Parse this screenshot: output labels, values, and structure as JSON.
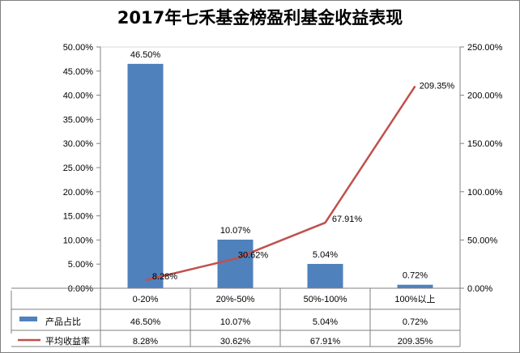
{
  "chart_data": {
    "type": "bar",
    "title": "2017年七禾基金榜盈利基金收益表现",
    "categories": [
      "0-20%",
      "20%-50%",
      "50%-100%",
      "100%以上"
    ],
    "series": [
      {
        "name": "产品占比",
        "type": "bar",
        "axis": "left",
        "color": "#4f81bd",
        "values": [
          46.5,
          10.07,
          5.04,
          0.72
        ],
        "labels": [
          "46.50%",
          "10.07%",
          "5.04%",
          "0.72%"
        ]
      },
      {
        "name": "平均收益率",
        "type": "line",
        "axis": "right",
        "color": "#c0504d",
        "values": [
          8.28,
          30.62,
          67.91,
          209.35
        ],
        "labels": [
          "8.28%",
          "30.62%",
          "67.91%",
          "209.35%"
        ]
      }
    ],
    "y_left": {
      "min": 0,
      "max": 50,
      "step": 5,
      "ticks": [
        "0.00%",
        "5.00%",
        "10.00%",
        "15.00%",
        "20.00%",
        "25.00%",
        "30.00%",
        "35.00%",
        "40.00%",
        "45.00%",
        "50.00%"
      ]
    },
    "y_right": {
      "min": 0,
      "max": 250,
      "step": 50,
      "ticks": [
        "0.00%",
        "50.00%",
        "100.00%",
        "150.00%",
        "200.00%",
        "250.00%"
      ]
    },
    "grid": false,
    "legend": "data-table-below"
  }
}
